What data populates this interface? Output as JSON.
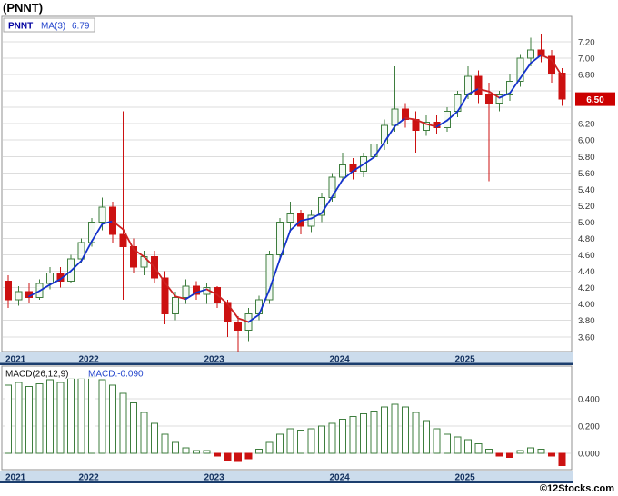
{
  "title": "(PNNT)",
  "watermark": "©12Stocks.com",
  "price_chart": {
    "legend": {
      "symbol": "PNNT",
      "ma_label": "MA(3)",
      "ma_value": "6.79"
    },
    "current_price": "6.50",
    "y_ticks": [
      "7.20",
      "7.00",
      "6.80",
      "6.20",
      "6.00",
      "5.80",
      "5.60",
      "5.40",
      "5.20",
      "5.00",
      "4.80",
      "4.60",
      "4.40",
      "4.20",
      "4.00",
      "3.80",
      "3.60"
    ],
    "x_labels": [
      "2021",
      "2022",
      "2023",
      "2024",
      "2025"
    ]
  },
  "macd_chart": {
    "legend_label": "MACD(26,12,9)",
    "legend_value": "MACD:-0.090",
    "y_ticks": [
      "0.400",
      "0.200",
      "0.000"
    ],
    "x_labels": [
      "2021",
      "2022",
      "2023",
      "2024",
      "2025"
    ]
  },
  "colors": {
    "up": "#3e7d3e",
    "up_fill": "#f4faf4",
    "down": "#cc1111",
    "ma_up": "#1432cc",
    "ma_down": "#cc2222",
    "badge_bg": "#cc0000",
    "badge_text": "#ffffff",
    "band_bg": "#ccdcec",
    "band_line": "#1c3e6e",
    "band_text": "#12305e",
    "grid": "#dddddd",
    "border": "#909090",
    "legend_symbol": "#0000a0",
    "legend_value": "#2244cc",
    "macd_label": "#111111",
    "axis_text": "#333333"
  },
  "chart_data": [
    {
      "type": "candlestick",
      "title": "(PNNT)",
      "subtitle": "monthly candles with MA(3)",
      "ylim": [
        3.42,
        7.51
      ],
      "x": [
        "2021-06",
        "2021-07",
        "2021-08",
        "2021-09",
        "2021-10",
        "2021-11",
        "2021-12",
        "2022-01",
        "2022-02",
        "2022-03",
        "2022-04",
        "2022-05",
        "2022-06",
        "2022-07",
        "2022-08",
        "2022-09",
        "2022-10",
        "2022-11",
        "2022-12",
        "2023-01",
        "2023-02",
        "2023-03",
        "2023-04",
        "2023-05",
        "2023-06",
        "2023-07",
        "2023-08",
        "2023-09",
        "2023-10",
        "2023-11",
        "2023-12",
        "2024-01",
        "2024-02",
        "2024-03",
        "2024-04",
        "2024-05",
        "2024-06",
        "2024-07",
        "2024-08",
        "2024-09",
        "2024-10",
        "2024-11",
        "2024-12",
        "2025-01",
        "2025-02",
        "2025-03",
        "2025-04",
        "2025-05",
        "2025-06",
        "2025-07",
        "2025-08",
        "2025-09",
        "2025-10",
        "2025-11"
      ],
      "ohlc": [
        [
          4.28,
          4.35,
          3.95,
          4.05
        ],
        [
          4.05,
          4.22,
          3.98,
          4.15
        ],
        [
          4.15,
          4.25,
          4.02,
          4.08
        ],
        [
          4.08,
          4.3,
          4.05,
          4.25
        ],
        [
          4.25,
          4.45,
          4.18,
          4.38
        ],
        [
          4.38,
          4.45,
          4.2,
          4.28
        ],
        [
          4.28,
          4.6,
          4.25,
          4.55
        ],
        [
          4.55,
          4.8,
          4.5,
          4.75
        ],
        [
          4.75,
          5.05,
          4.7,
          5.0
        ],
        [
          5.0,
          5.3,
          4.9,
          5.18
        ],
        [
          5.18,
          5.25,
          4.75,
          4.85
        ],
        [
          4.85,
          6.35,
          4.05,
          4.7
        ],
        [
          4.7,
          4.8,
          4.38,
          4.45
        ],
        [
          4.45,
          4.65,
          4.35,
          4.58
        ],
        [
          4.58,
          4.65,
          4.25,
          4.32
        ],
        [
          4.32,
          4.4,
          3.75,
          3.88
        ],
        [
          3.88,
          4.15,
          3.8,
          4.08
        ],
        [
          4.08,
          4.3,
          4.0,
          4.22
        ],
        [
          4.22,
          4.28,
          4.05,
          4.12
        ],
        [
          4.12,
          4.25,
          4.0,
          4.2
        ],
        [
          4.2,
          4.22,
          3.95,
          4.02
        ],
        [
          4.02,
          4.05,
          3.6,
          3.78
        ],
        [
          3.78,
          3.85,
          3.42,
          3.68
        ],
        [
          3.68,
          3.95,
          3.55,
          3.88
        ],
        [
          3.88,
          4.1,
          3.8,
          4.05
        ],
        [
          4.05,
          4.65,
          4.0,
          4.6
        ],
        [
          4.6,
          5.05,
          4.55,
          5.0
        ],
        [
          5.0,
          5.25,
          4.9,
          5.1
        ],
        [
          5.1,
          5.15,
          4.85,
          4.95
        ],
        [
          4.95,
          5.15,
          4.88,
          5.08
        ],
        [
          5.08,
          5.35,
          5.0,
          5.3
        ],
        [
          5.3,
          5.6,
          5.25,
          5.55
        ],
        [
          5.55,
          5.85,
          5.5,
          5.7
        ],
        [
          5.7,
          5.78,
          5.52,
          5.62
        ],
        [
          5.62,
          5.85,
          5.55,
          5.8
        ],
        [
          5.8,
          6.0,
          5.7,
          5.95
        ],
        [
          5.95,
          6.25,
          5.88,
          6.18
        ],
        [
          6.18,
          6.9,
          6.1,
          6.38
        ],
        [
          6.38,
          6.45,
          6.15,
          6.25
        ],
        [
          6.25,
          6.35,
          5.85,
          6.12
        ],
        [
          6.12,
          6.3,
          6.05,
          6.22
        ],
        [
          6.22,
          6.3,
          6.08,
          6.15
        ],
        [
          6.15,
          6.4,
          6.1,
          6.35
        ],
        [
          6.35,
          6.6,
          6.28,
          6.55
        ],
        [
          6.55,
          6.9,
          6.5,
          6.78
        ],
        [
          6.78,
          6.85,
          6.45,
          6.55
        ],
        [
          6.55,
          6.7,
          5.5,
          6.45
        ],
        [
          6.45,
          6.6,
          6.35,
          6.55
        ],
        [
          6.55,
          6.8,
          6.48,
          6.72
        ],
        [
          6.72,
          7.05,
          6.65,
          7.0
        ],
        [
          7.0,
          7.25,
          6.9,
          7.1
        ],
        [
          7.1,
          7.3,
          6.95,
          7.02
        ],
        [
          7.02,
          7.1,
          6.7,
          6.82
        ],
        [
          6.82,
          6.88,
          6.42,
          6.5
        ]
      ],
      "ma_window": 3,
      "last_ma": 6.79,
      "last_close": 6.5,
      "grid": true,
      "legend_position": "top-left"
    },
    {
      "type": "bar",
      "title": "MACD(26,12,9)",
      "ylim": [
        -0.12,
        0.64
      ],
      "x": [
        "2021-06",
        "2021-07",
        "2021-08",
        "2021-09",
        "2021-10",
        "2021-11",
        "2021-12",
        "2022-01",
        "2022-02",
        "2022-03",
        "2022-04",
        "2022-05",
        "2022-06",
        "2022-07",
        "2022-08",
        "2022-09",
        "2022-10",
        "2022-11",
        "2022-12",
        "2023-01",
        "2023-02",
        "2023-03",
        "2023-04",
        "2023-05",
        "2023-06",
        "2023-07",
        "2023-08",
        "2023-09",
        "2023-10",
        "2023-11",
        "2023-12",
        "2024-01",
        "2024-02",
        "2024-03",
        "2024-04",
        "2024-05",
        "2024-06",
        "2024-07",
        "2024-08",
        "2024-09",
        "2024-10",
        "2024-11",
        "2024-12",
        "2025-01",
        "2025-02",
        "2025-03",
        "2025-04",
        "2025-05",
        "2025-06",
        "2025-07",
        "2025-08",
        "2025-09",
        "2025-10",
        "2025-11"
      ],
      "values": [
        0.5,
        0.52,
        0.49,
        0.51,
        0.54,
        0.52,
        0.55,
        0.55,
        0.56,
        0.54,
        0.5,
        0.44,
        0.37,
        0.3,
        0.22,
        0.14,
        0.08,
        0.04,
        0.02,
        0.02,
        -0.02,
        -0.05,
        -0.06,
        -0.04,
        0.03,
        0.08,
        0.14,
        0.18,
        0.17,
        0.18,
        0.2,
        0.22,
        0.25,
        0.27,
        0.29,
        0.31,
        0.34,
        0.36,
        0.34,
        0.3,
        0.24,
        0.18,
        0.14,
        0.12,
        0.1,
        0.07,
        0.03,
        -0.02,
        -0.03,
        0.02,
        0.04,
        0.03,
        -0.02,
        -0.09
      ],
      "last_value": -0.09,
      "grid": true
    }
  ]
}
